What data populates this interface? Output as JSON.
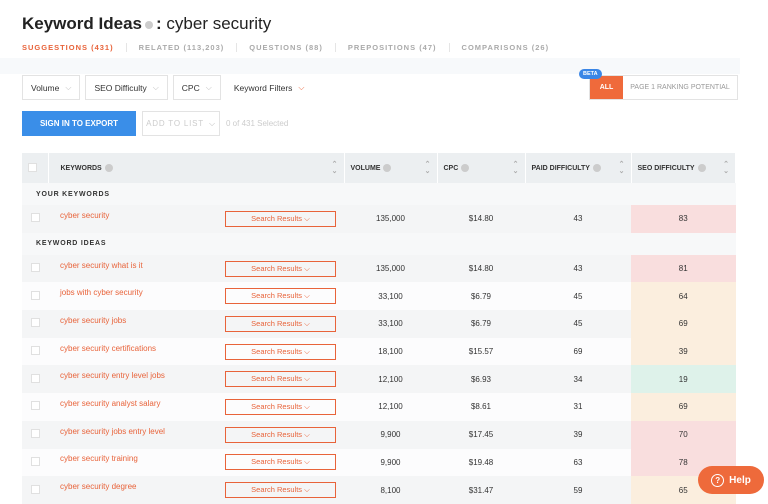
{
  "header": {
    "title": "Keyword Ideas",
    "separator": ":",
    "query": "cyber security"
  },
  "tabs": [
    {
      "label": "SUGGESTIONS (431)",
      "active": true
    },
    {
      "label": "RELATED (113,203)"
    },
    {
      "label": "QUESTIONS (88)"
    },
    {
      "label": "PREPOSITIONS (47)"
    },
    {
      "label": "COMPARISONS (26)"
    }
  ],
  "filters": [
    "Volume",
    "SEO Difficulty",
    "CPC",
    "Keyword Filters"
  ],
  "ranking": {
    "beta": "BETA",
    "all": "ALL",
    "page1": "PAGE 1 RANKING POTENTIAL"
  },
  "actions": {
    "export": "SIGN IN TO EXPORT",
    "add_to_list": "ADD TO LIST",
    "selected": "0 of 431 Selected"
  },
  "table": {
    "columns": [
      "KEYWORDS",
      "VOLUME",
      "CPC",
      "PAID DIFFICULTY",
      "SEO DIFFICULTY"
    ],
    "search_results_label": "Search Results",
    "your_keywords_label": "YOUR KEYWORDS",
    "keyword_ideas_label": "KEYWORD IDEAS",
    "your_keywords": [
      {
        "keyword": "cyber security",
        "volume": "135,000",
        "cpc": "$14.80",
        "paid": "43",
        "seo": "83"
      }
    ],
    "ideas": [
      {
        "keyword": "cyber security what is it",
        "volume": "135,000",
        "cpc": "$14.80",
        "paid": "43",
        "seo": "81"
      },
      {
        "keyword": "jobs with cyber security",
        "volume": "33,100",
        "cpc": "$6.79",
        "paid": "45",
        "seo": "64"
      },
      {
        "keyword": "cyber security jobs",
        "volume": "33,100",
        "cpc": "$6.79",
        "paid": "45",
        "seo": "69"
      },
      {
        "keyword": "cyber security certifications",
        "volume": "18,100",
        "cpc": "$15.57",
        "paid": "69",
        "seo": "39"
      },
      {
        "keyword": "cyber security entry level jobs",
        "volume": "12,100",
        "cpc": "$6.93",
        "paid": "34",
        "seo": "19"
      },
      {
        "keyword": "cyber security analyst salary",
        "volume": "12,100",
        "cpc": "$8.61",
        "paid": "31",
        "seo": "69"
      },
      {
        "keyword": "cyber security jobs entry level",
        "volume": "9,900",
        "cpc": "$17.45",
        "paid": "39",
        "seo": "70"
      },
      {
        "keyword": "cyber security training",
        "volume": "9,900",
        "cpc": "$19.48",
        "paid": "63",
        "seo": "78"
      },
      {
        "keyword": "cyber security degree",
        "volume": "8,100",
        "cpc": "$31.47",
        "paid": "59",
        "seo": "65"
      }
    ]
  },
  "help": {
    "label": "Help"
  },
  "colors": {
    "accent": "#e8633a",
    "primary": "#3a8ee8",
    "seo_hard": "#f9dede",
    "seo_medium": "#fbeede",
    "seo_easy": "#def2ea"
  }
}
